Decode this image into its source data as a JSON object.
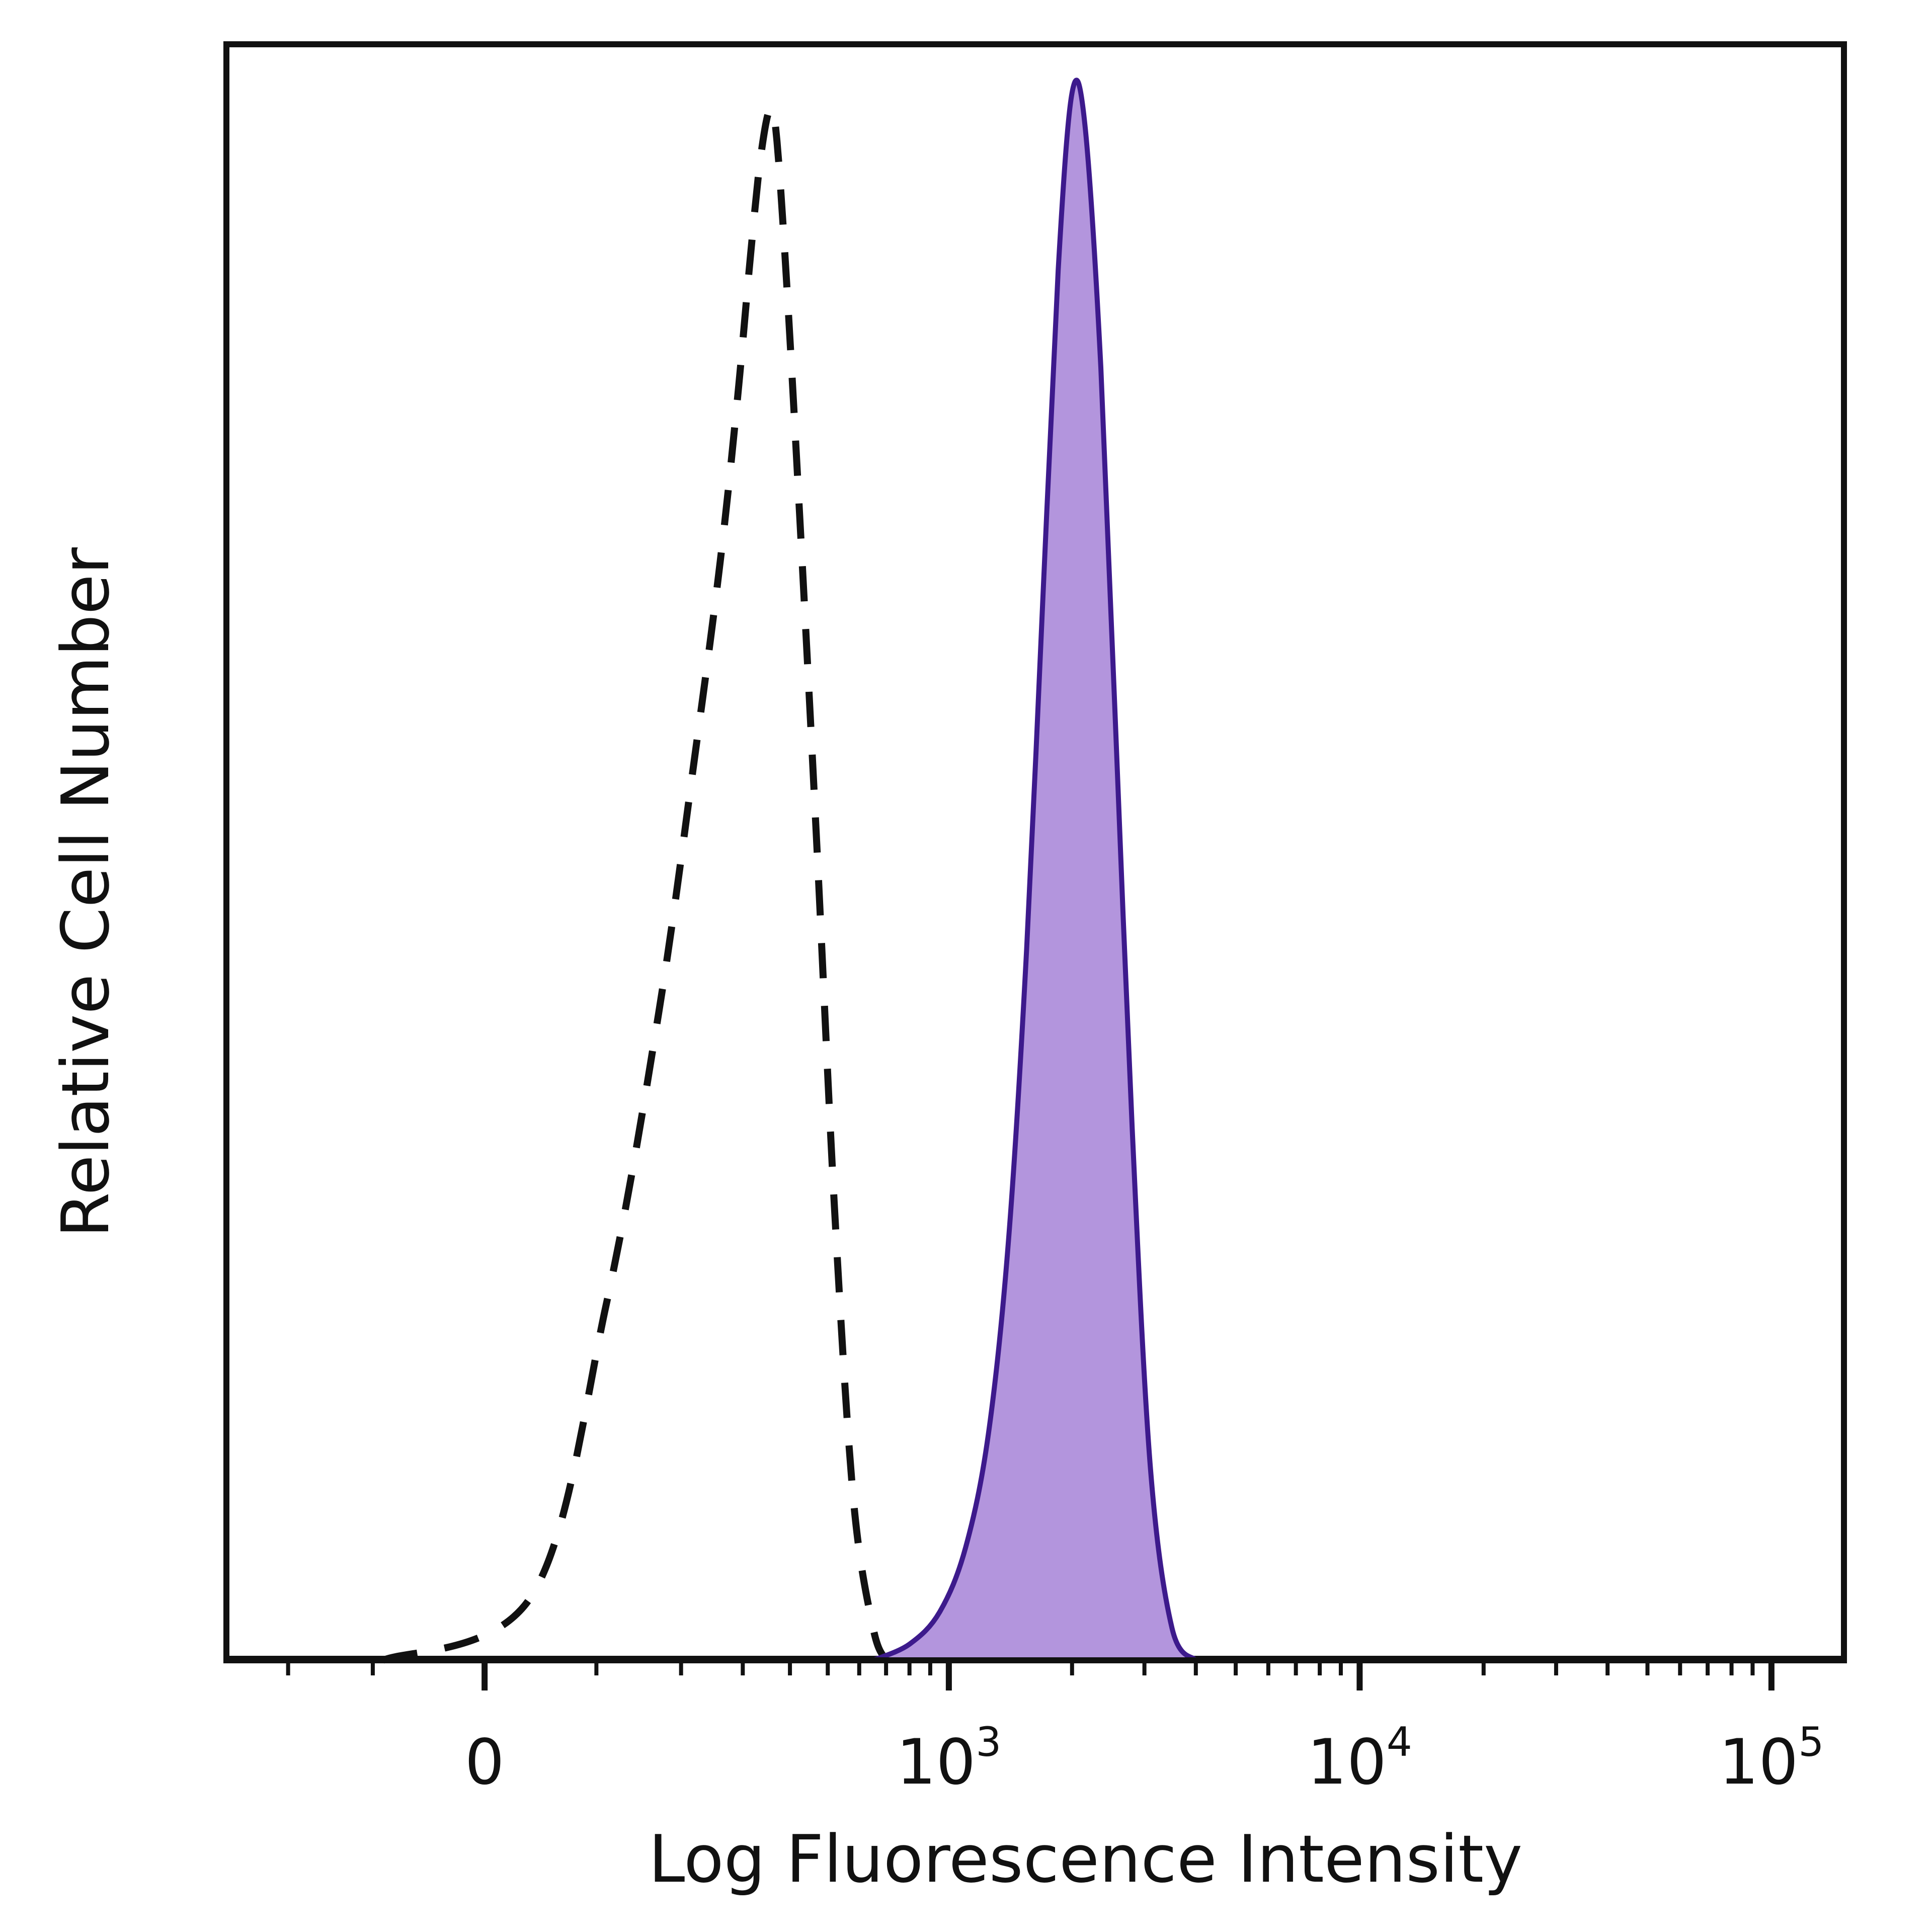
{
  "chart_data": {
    "type": "area",
    "xlabel": "Log Fluorescence Intensity",
    "ylabel": "Relative Cell Number",
    "x_scale": "biexponential",
    "x_range": [
      -300,
      150000
    ],
    "y_range": [
      0,
      100
    ],
    "grid": false,
    "legend": "none",
    "x_ticks": [
      {
        "value": 0,
        "base": "0",
        "exp": ""
      },
      {
        "value": 1000,
        "base": "10",
        "exp": "3"
      },
      {
        "value": 10000,
        "base": "10",
        "exp": "4"
      },
      {
        "value": 100000,
        "base": "10",
        "exp": "5"
      }
    ],
    "series": [
      {
        "style": "dashed",
        "color": "#111111",
        "fill": "none",
        "x": [
          -90,
          40,
          110,
          170,
          220,
          260,
          290,
          315,
          335,
          355,
          370,
          395,
          430,
          470,
          520,
          580,
          650,
          700
        ],
        "y": [
          0,
          4,
          22,
          40,
          56,
          68,
          78,
          87,
          93,
          96,
          94,
          84,
          68,
          50,
          28,
          10,
          2,
          0
        ]
      },
      {
        "style": "solid",
        "color": "#3d1a8c",
        "fill": "#b395dd",
        "x": [
          650,
          800,
          950,
          1100,
          1250,
          1400,
          1550,
          1700,
          1850,
          2000,
          2150,
          2350,
          2550,
          2800,
          3100,
          3500,
          4000
        ],
        "y": [
          0,
          1,
          3,
          7,
          14,
          26,
          44,
          66,
          86,
          97,
          95,
          80,
          58,
          33,
          12,
          2,
          0
        ]
      }
    ]
  }
}
